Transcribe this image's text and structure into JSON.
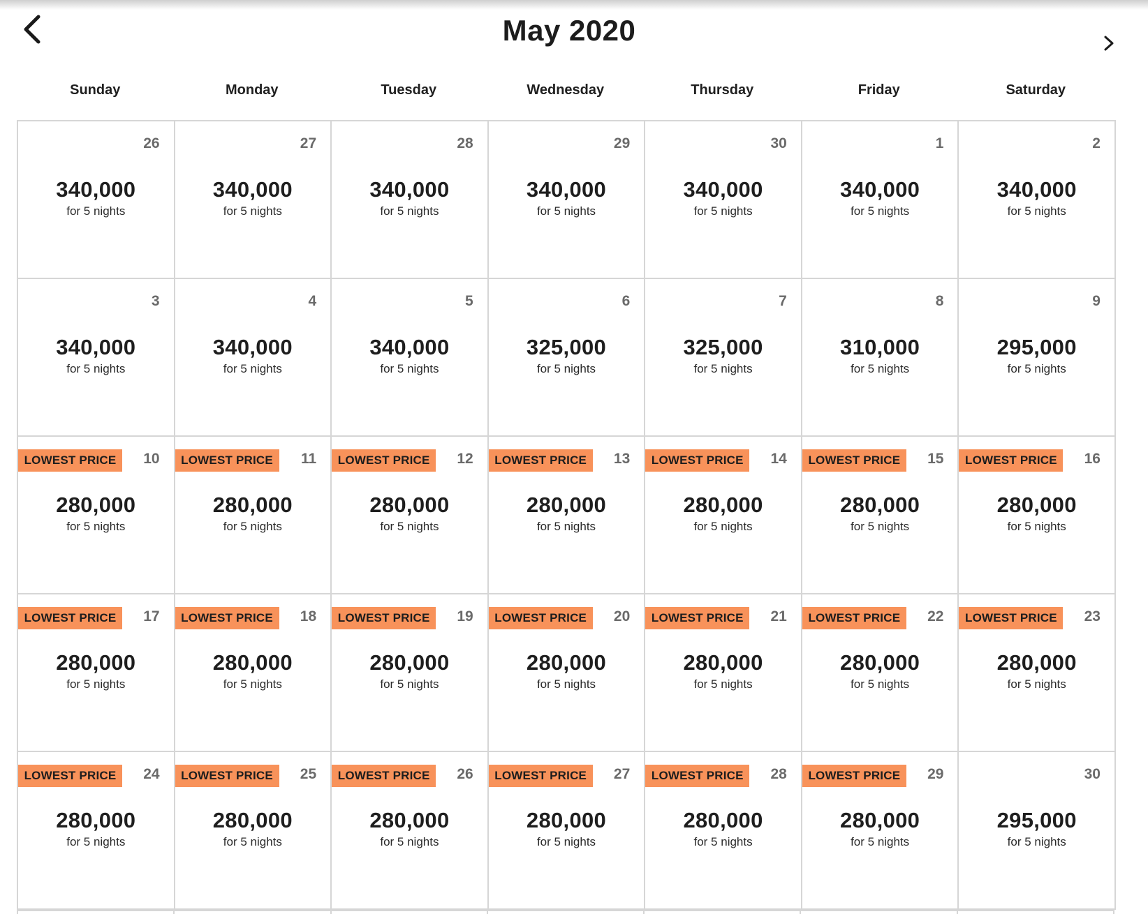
{
  "header": {
    "title": "May 2020",
    "prev_icon": "chevron-left-icon",
    "next_icon": "chevron-right-icon"
  },
  "weekdays": [
    "Sunday",
    "Monday",
    "Tuesday",
    "Wednesday",
    "Thursday",
    "Friday",
    "Saturday"
  ],
  "badge_color": "#f8925a",
  "days": [
    {
      "day": "26",
      "price": "340,000",
      "nights": "for 5 nights",
      "badge": ""
    },
    {
      "day": "27",
      "price": "340,000",
      "nights": "for 5 nights",
      "badge": ""
    },
    {
      "day": "28",
      "price": "340,000",
      "nights": "for 5 nights",
      "badge": ""
    },
    {
      "day": "29",
      "price": "340,000",
      "nights": "for 5 nights",
      "badge": ""
    },
    {
      "day": "30",
      "price": "340,000",
      "nights": "for 5 nights",
      "badge": ""
    },
    {
      "day": "1",
      "price": "340,000",
      "nights": "for 5 nights",
      "badge": ""
    },
    {
      "day": "2",
      "price": "340,000",
      "nights": "for 5 nights",
      "badge": ""
    },
    {
      "day": "3",
      "price": "340,000",
      "nights": "for 5 nights",
      "badge": ""
    },
    {
      "day": "4",
      "price": "340,000",
      "nights": "for 5 nights",
      "badge": ""
    },
    {
      "day": "5",
      "price": "340,000",
      "nights": "for 5 nights",
      "badge": ""
    },
    {
      "day": "6",
      "price": "325,000",
      "nights": "for 5 nights",
      "badge": ""
    },
    {
      "day": "7",
      "price": "325,000",
      "nights": "for 5 nights",
      "badge": ""
    },
    {
      "day": "8",
      "price": "310,000",
      "nights": "for 5 nights",
      "badge": ""
    },
    {
      "day": "9",
      "price": "295,000",
      "nights": "for 5 nights",
      "badge": ""
    },
    {
      "day": "10",
      "price": "280,000",
      "nights": "for 5 nights",
      "badge": "LOWEST PRICE"
    },
    {
      "day": "11",
      "price": "280,000",
      "nights": "for 5 nights",
      "badge": "LOWEST PRICE"
    },
    {
      "day": "12",
      "price": "280,000",
      "nights": "for 5 nights",
      "badge": "LOWEST PRICE"
    },
    {
      "day": "13",
      "price": "280,000",
      "nights": "for 5 nights",
      "badge": "LOWEST PRICE"
    },
    {
      "day": "14",
      "price": "280,000",
      "nights": "for 5 nights",
      "badge": "LOWEST PRICE"
    },
    {
      "day": "15",
      "price": "280,000",
      "nights": "for 5 nights",
      "badge": "LOWEST PRICE"
    },
    {
      "day": "16",
      "price": "280,000",
      "nights": "for 5 nights",
      "badge": "LOWEST PRICE"
    },
    {
      "day": "17",
      "price": "280,000",
      "nights": "for 5 nights",
      "badge": "LOWEST PRICE"
    },
    {
      "day": "18",
      "price": "280,000",
      "nights": "for 5 nights",
      "badge": "LOWEST PRICE"
    },
    {
      "day": "19",
      "price": "280,000",
      "nights": "for 5 nights",
      "badge": "LOWEST PRICE"
    },
    {
      "day": "20",
      "price": "280,000",
      "nights": "for 5 nights",
      "badge": "LOWEST PRICE"
    },
    {
      "day": "21",
      "price": "280,000",
      "nights": "for 5 nights",
      "badge": "LOWEST PRICE"
    },
    {
      "day": "22",
      "price": "280,000",
      "nights": "for 5 nights",
      "badge": "LOWEST PRICE"
    },
    {
      "day": "23",
      "price": "280,000",
      "nights": "for 5 nights",
      "badge": "LOWEST PRICE"
    },
    {
      "day": "24",
      "price": "280,000",
      "nights": "for 5 nights",
      "badge": "LOWEST PRICE"
    },
    {
      "day": "25",
      "price": "280,000",
      "nights": "for 5 nights",
      "badge": "LOWEST PRICE"
    },
    {
      "day": "26",
      "price": "280,000",
      "nights": "for 5 nights",
      "badge": "LOWEST PRICE"
    },
    {
      "day": "27",
      "price": "280,000",
      "nights": "for 5 nights",
      "badge": "LOWEST PRICE"
    },
    {
      "day": "28",
      "price": "280,000",
      "nights": "for 5 nights",
      "badge": "LOWEST PRICE"
    },
    {
      "day": "29",
      "price": "280,000",
      "nights": "for 5 nights",
      "badge": "LOWEST PRICE"
    },
    {
      "day": "30",
      "price": "295,000",
      "nights": "for 5 nights",
      "badge": ""
    }
  ]
}
